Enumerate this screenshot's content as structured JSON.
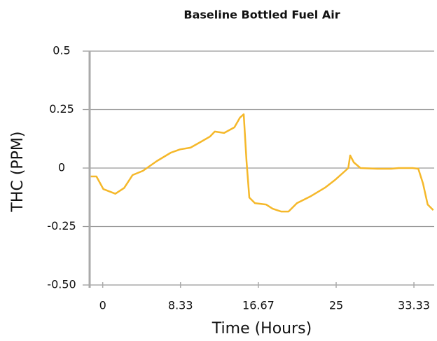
{
  "chart_data": {
    "type": "line",
    "title": "Baseline Bottled Fuel Air",
    "xlabel": "Time (Hours)",
    "ylabel": "THC (PPM)",
    "x": [
      -1.27,
      -0.67,
      0.07,
      1.35,
      2.3,
      3.2,
      4.3,
      5.8,
      7.3,
      8.3,
      9.4,
      10.6,
      11.5,
      12.0,
      13.0,
      14.1,
      14.7,
      15.1,
      15.4,
      15.7,
      16.3,
      17.5,
      18.2,
      19.1,
      19.9,
      20.8,
      22.3,
      23.8,
      24.9,
      25.8,
      26.3,
      26.5,
      26.9,
      27.6,
      29.4,
      30.9,
      31.7,
      33.2,
      33.8,
      34.3,
      34.8,
      35.4
    ],
    "series": [
      {
        "name": "THC",
        "color": "#f5b82a",
        "values": [
          -0.036,
          -0.036,
          -0.09,
          -0.11,
          -0.085,
          -0.03,
          -0.012,
          0.03,
          0.066,
          0.08,
          0.087,
          0.114,
          0.135,
          0.156,
          0.15,
          0.174,
          0.216,
          0.23,
          0.03,
          -0.126,
          -0.15,
          -0.156,
          -0.174,
          -0.186,
          -0.186,
          -0.15,
          -0.12,
          -0.084,
          -0.05,
          -0.018,
          0,
          0.054,
          0.024,
          0,
          -0.003,
          -0.003,
          0,
          0,
          -0.003,
          -0.066,
          -0.156,
          -0.18
        ]
      }
    ],
    "xlim": [
      -1.4,
      35.5
    ],
    "xticks": [
      0,
      8.33,
      16.67,
      25,
      33.33
    ],
    "ylim": [
      -0.5,
      0.5
    ],
    "yticks": [
      0.5,
      0.25,
      0,
      -0.25,
      {
        "value": -0.5,
        "label": "-0.50"
      }
    ],
    "grid": true
  }
}
